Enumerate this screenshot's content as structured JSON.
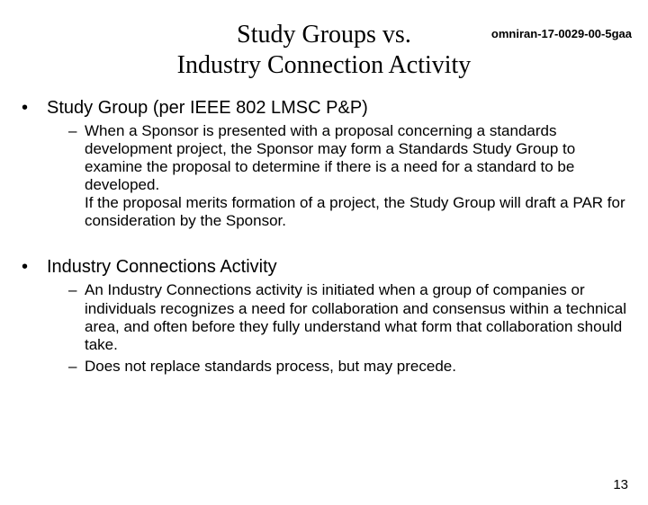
{
  "doc_id": "omniran-17-0029-00-5gaa",
  "title_line1": "Study Groups vs.",
  "title_line2": "Industry Connection Activity",
  "section1": {
    "heading": "Study Group (per IEEE 802 LMSC P&P)",
    "items": [
      "When a Sponsor is presented with a proposal concerning a standards development project, the Sponsor may form a Standards Study Group to examine the proposal to determine if there is a need for a standard to be developed.\nIf the proposal merits formation of a project, the Study Group will draft a PAR for consideration by the Sponsor."
    ]
  },
  "section2": {
    "heading": "Industry Connections Activity",
    "items": [
      "An Industry Connections activity is initiated when a group of companies or individuals recognizes a need for collaboration and consensus within a technical area, and often before they fully understand what form that collaboration should take.",
      "Does not replace standards process, but may precede."
    ]
  },
  "page_number": "13",
  "colors": {
    "background": "#ffffff",
    "text": "#000000"
  },
  "bullet_markers": {
    "l1": "•",
    "l2": "–"
  }
}
